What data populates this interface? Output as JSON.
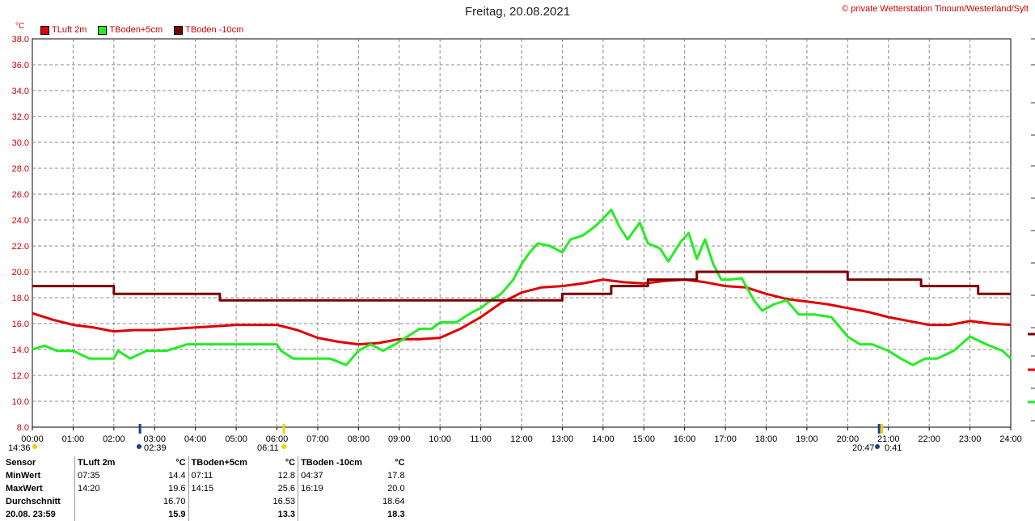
{
  "header": {
    "title": "Freitag, 20.08.2021",
    "copyright": "© private Wetterstation Tinnum/Westerland/Sylt",
    "unit": "°C"
  },
  "legend": [
    {
      "name": "TLuft 2m",
      "color": "#e00000"
    },
    {
      "name": "TBoden+5cm",
      "color": "#22ee22"
    },
    {
      "name": "TBoden -10cm",
      "color": "#7a0000"
    }
  ],
  "sun": {
    "left_time": "14:36",
    "sunrise": "02:39",
    "sunrise_pre": "06:11",
    "sunset_pre": "20:47",
    "sunset": "0:41"
  },
  "stats": {
    "header": {
      "sensor": "Sensor",
      "s1": "TLuft 2m",
      "s2": "TBoden+5cm",
      "s3": "TBoden -10cm",
      "unit": "°C"
    },
    "rows": [
      {
        "label": "MinWert",
        "t1": "07:35",
        "v1": "14.4",
        "t2": "07:11",
        "v2": "12.8",
        "t3": "04:37",
        "v3": "17.8"
      },
      {
        "label": "MaxWert",
        "t1": "14:20",
        "v1": "19.6",
        "t2": "14:15",
        "v2": "25.6",
        "t3": "16:19",
        "v3": "20.0"
      },
      {
        "label": "Durchschnitt",
        "t1": "",
        "v1": "16.70",
        "t2": "",
        "v2": "16.53",
        "t3": "",
        "v3": "18.64"
      },
      {
        "label": "20.08. 23:59",
        "t1": "",
        "v1": "15.9",
        "t2": "",
        "v2": "13.3",
        "t3": "",
        "v3": "18.3"
      }
    ]
  },
  "chart_data": {
    "type": "line",
    "title": "Freitag, 20.08.2021",
    "ylabel": "°C",
    "xlim": [
      0,
      24
    ],
    "ylim": [
      8,
      38
    ],
    "grid": true,
    "legend_position": "top-left",
    "x_ticks": [
      "00:00",
      "01:00",
      "02:00",
      "03:00",
      "04:00",
      "05:00",
      "06:00",
      "07:00",
      "08:00",
      "09:00",
      "10:00",
      "11:00",
      "12:00",
      "13:00",
      "14:00",
      "15:00",
      "16:00",
      "17:00",
      "18:00",
      "19:00",
      "20:00",
      "21:00",
      "22:00",
      "23:00",
      "24:00"
    ],
    "y_ticks": [
      "8.0",
      "10.0",
      "12.0",
      "14.0",
      "16.0",
      "18.0",
      "20.0",
      "22.0",
      "24.0",
      "26.0",
      "28.0",
      "30.0",
      "32.0",
      "34.0",
      "36.0",
      "38.0"
    ],
    "series": [
      {
        "name": "TLuft 2m",
        "color": "#e00000",
        "x": [
          0,
          0.5,
          1,
          1.5,
          2,
          2.5,
          3,
          3.5,
          4,
          4.5,
          5,
          5.5,
          6,
          6.5,
          7,
          7.5,
          8,
          8.5,
          9,
          9.5,
          10,
          10.5,
          11,
          11.5,
          12,
          12.5,
          13,
          13.5,
          14,
          14.5,
          15,
          15.5,
          16,
          16.5,
          17,
          17.5,
          18,
          18.5,
          19,
          19.5,
          20,
          20.5,
          21,
          21.5,
          22,
          22.5,
          23,
          23.5,
          24
        ],
        "y": [
          16.8,
          16.3,
          15.9,
          15.7,
          15.4,
          15.5,
          15.5,
          15.6,
          15.7,
          15.8,
          15.9,
          15.9,
          15.9,
          15.5,
          14.9,
          14.6,
          14.4,
          14.5,
          14.8,
          14.8,
          14.9,
          15.6,
          16.5,
          17.6,
          18.4,
          18.8,
          18.9,
          19.1,
          19.4,
          19.2,
          19.1,
          19.3,
          19.4,
          19.2,
          18.9,
          18.8,
          18.3,
          17.9,
          17.7,
          17.5,
          17.2,
          16.9,
          16.5,
          16.2,
          15.9,
          15.9,
          16.2,
          16.0,
          15.9
        ]
      },
      {
        "name": "TBoden+5cm",
        "color": "#22ee22",
        "x": [
          0,
          0.3,
          0.6,
          1,
          1.4,
          2,
          2.1,
          2.4,
          2.8,
          3.3,
          3.8,
          4.5,
          5,
          5.5,
          6,
          6.1,
          6.4,
          6.8,
          7.3,
          7.7,
          8,
          8.3,
          8.6,
          8.9,
          9.1,
          9.5,
          9.8,
          10,
          10.4,
          10.8,
          11,
          11.2,
          11.5,
          11.8,
          12,
          12.2,
          12.4,
          12.7,
          13,
          13.2,
          13.5,
          13.8,
          14,
          14.2,
          14.4,
          14.6,
          14.9,
          15.1,
          15.4,
          15.6,
          15.9,
          16.1,
          16.3,
          16.5,
          16.7,
          16.9,
          17.1,
          17.4,
          17.7,
          17.9,
          18.2,
          18.5,
          18.8,
          19.2,
          19.6,
          20,
          20.3,
          20.6,
          21,
          21.3,
          21.6,
          21.9,
          22.2,
          22.6,
          23,
          23.4,
          23.8,
          24
        ],
        "y": [
          14.0,
          14.3,
          13.9,
          13.9,
          13.3,
          13.3,
          13.9,
          13.3,
          13.9,
          13.9,
          14.4,
          14.4,
          14.4,
          14.4,
          14.4,
          13.9,
          13.3,
          13.3,
          13.3,
          12.8,
          13.9,
          14.4,
          13.9,
          14.4,
          14.8,
          15.6,
          15.6,
          16.1,
          16.1,
          16.9,
          17.2,
          17.7,
          18.3,
          19.4,
          20.6,
          21.5,
          22.2,
          22.0,
          21.5,
          22.5,
          22.8,
          23.5,
          24.1,
          24.8,
          23.5,
          22.5,
          23.8,
          22.2,
          21.8,
          20.8,
          22.3,
          23.0,
          21.0,
          22.5,
          20.6,
          19.4,
          19.4,
          19.5,
          17.8,
          17.0,
          17.5,
          17.8,
          16.7,
          16.7,
          16.5,
          15.0,
          14.4,
          14.4,
          13.9,
          13.3,
          12.8,
          13.3,
          13.3,
          13.9,
          15.0,
          14.4,
          13.9,
          13.3
        ]
      },
      {
        "name": "TBoden -10cm",
        "color": "#7a0000",
        "x": [
          0,
          2,
          2,
          4.6,
          4.6,
          13,
          13,
          14.2,
          14.2,
          15.1,
          15.1,
          16.3,
          16.3,
          20,
          20,
          21.8,
          21.8,
          23.2,
          23.2,
          24
        ],
        "y": [
          18.9,
          18.9,
          18.3,
          18.3,
          17.8,
          17.8,
          18.3,
          18.3,
          18.9,
          18.9,
          19.4,
          19.4,
          20.0,
          20.0,
          19.4,
          19.4,
          18.9,
          18.9,
          18.3,
          18.3
        ]
      }
    ]
  }
}
